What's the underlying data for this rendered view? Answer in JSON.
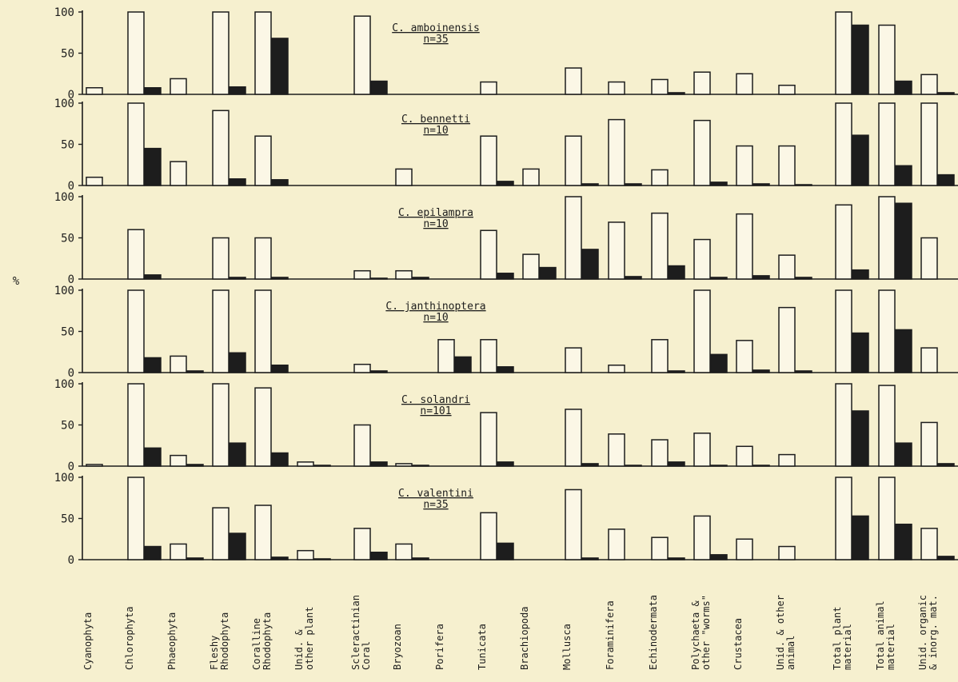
{
  "chart_data": {
    "type": "bar",
    "ylabel": "%",
    "ylim": [
      0,
      100
    ],
    "yticks": [
      "0",
      "50",
      "100"
    ],
    "categories": [
      "Cyanophyta",
      "Chlorophyta",
      "Phaeophyta",
      "Fleshy\nRhodophyta",
      "Coralline\nRhodophyta",
      "Unid. &\nother plant",
      "Scleractinian\nCoral",
      "Bryozoan",
      "Porifera",
      "Tunicata",
      "Brachiopoda",
      "Mollusca",
      "Foraminifera",
      "Echinodermata",
      "Polychaeta &\nother \"worms\"",
      "Crustacea",
      "Unid. & other\nanimal",
      "Total plant\nmaterial",
      "Total animal\nmaterial",
      "Unid. organic\n& inorg. mat."
    ],
    "series_style": [
      {
        "fill": "#fbf7e6",
        "stroke": "#1d1d1d"
      },
      {
        "fill": "#1d1d1d",
        "stroke": "#1d1d1d"
      }
    ],
    "panels": [
      {
        "species": "C. amboinensis",
        "n": "n=35",
        "series": [
          {
            "values": [
              8,
              100,
              19,
              100,
              100,
              0,
              95,
              0,
              0,
              15,
              0,
              32,
              15,
              18,
              27,
              25,
              11,
              100,
              84,
              24
            ]
          },
          {
            "values": [
              0,
              8,
              0,
              9,
              68,
              0,
              16,
              0,
              0,
              0,
              0,
              0,
              0,
              2,
              0,
              0,
              0,
              84,
              16,
              2
            ]
          }
        ]
      },
      {
        "species": "C. bennetti",
        "n": "n=10",
        "series": [
          {
            "values": [
              10,
              100,
              29,
              91,
              60,
              0,
              0,
              20,
              0,
              60,
              20,
              60,
              80,
              19,
              79,
              48,
              48,
              100,
              100,
              100
            ]
          },
          {
            "values": [
              0,
              45,
              0,
              8,
              7,
              0,
              0,
              0,
              0,
              5,
              0,
              2,
              2,
              0,
              4,
              2,
              1,
              61,
              24,
              13
            ]
          }
        ]
      },
      {
        "species": "C. epilampra",
        "n": "n=10",
        "series": [
          {
            "values": [
              0,
              60,
              0,
              50,
              50,
              0,
              10,
              10,
              0,
              59,
              30,
              100,
              69,
              80,
              48,
              79,
              29,
              90,
              100,
              50
            ]
          },
          {
            "values": [
              0,
              5,
              0,
              2,
              2,
              0,
              1,
              2,
              0,
              7,
              14,
              36,
              3,
              16,
              2,
              4,
              2,
              11,
              92,
              0
            ]
          }
        ]
      },
      {
        "species": "C. janthinoptera",
        "n": "n=10",
        "series": [
          {
            "values": [
              0,
              100,
              20,
              100,
              100,
              0,
              10,
              0,
              40,
              40,
              0,
              30,
              9,
              40,
              100,
              39,
              79,
              100,
              100,
              30
            ]
          },
          {
            "values": [
              0,
              18,
              2,
              24,
              9,
              0,
              2,
              0,
              19,
              7,
              0,
              0,
              0,
              2,
              22,
              3,
              2,
              48,
              52,
              0
            ]
          }
        ]
      },
      {
        "species": "C. solandri",
        "n": "n=101",
        "series": [
          {
            "values": [
              2,
              100,
              13,
              100,
              95,
              5,
              50,
              3,
              0,
              65,
              0,
              69,
              39,
              32,
              40,
              24,
              14,
              100,
              98,
              53
            ]
          },
          {
            "values": [
              0,
              22,
              2,
              28,
              16,
              1,
              5,
              1,
              0,
              5,
              0,
              3,
              1,
              5,
              1,
              1,
              0,
              67,
              28,
              3
            ]
          }
        ]
      },
      {
        "species": "C. valentini",
        "n": "n=35",
        "series": [
          {
            "values": [
              0,
              100,
              19,
              63,
              66,
              11,
              38,
              19,
              0,
              57,
              0,
              85,
              37,
              27,
              53,
              25,
              16,
              100,
              100,
              38
            ]
          },
          {
            "values": [
              0,
              16,
              2,
              32,
              3,
              1,
              9,
              2,
              0,
              20,
              0,
              2,
              0,
              2,
              6,
              0,
              0,
              53,
              43,
              4
            ]
          }
        ]
      }
    ]
  }
}
